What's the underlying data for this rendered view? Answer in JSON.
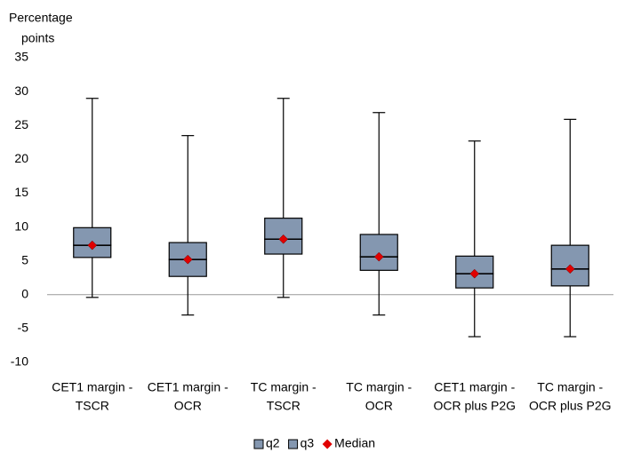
{
  "chart_data": {
    "type": "box",
    "ylabel": [
      "Percentage",
      "points"
    ],
    "categories": [
      [
        "CET1 margin -",
        "TSCR"
      ],
      [
        "CET1 margin -",
        "OCR"
      ],
      [
        "TC margin -",
        "TSCR"
      ],
      [
        "TC margin -",
        "OCR"
      ],
      [
        "CET1 margin -",
        "OCR plus P2G"
      ],
      [
        "TC margin -",
        "OCR plus P2G"
      ]
    ],
    "min": [
      -0.4,
      -3,
      -0.4,
      -3,
      -6.2,
      -6.2
    ],
    "q1": [
      5.5,
      2.7,
      6.0,
      3.6,
      1.0,
      1.3
    ],
    "median": [
      7.3,
      5.2,
      8.2,
      5.6,
      3.1,
      3.8
    ],
    "q3": [
      9.9,
      7.7,
      11.3,
      8.9,
      5.7,
      7.3
    ],
    "max": [
      29,
      23.5,
      29,
      26.9,
      22.7,
      25.9
    ],
    "legend": [
      {
        "name": "q2",
        "color": "#8497b0"
      },
      {
        "name": "q3",
        "color": "#8497b0"
      },
      {
        "name": "Median",
        "color": "#e00000"
      }
    ],
    "ylim": [
      -10,
      35
    ],
    "yticks": [
      -10,
      -5,
      0,
      5,
      10,
      15,
      20,
      25,
      30,
      35
    ]
  }
}
